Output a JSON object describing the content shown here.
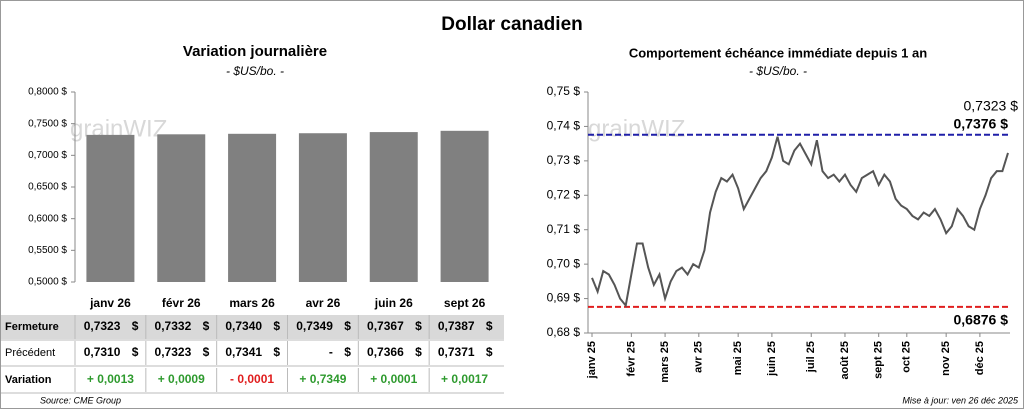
{
  "title": "Dollar canadien",
  "watermark": "grainWIZ",
  "source": "Source: CME Group",
  "updated": "Mise à jour: ven 26 déc 2025",
  "chart_data": [
    {
      "type": "bar",
      "title": "Variation  journalière",
      "subtitle": "- $US/bo. -",
      "color": "#808080",
      "categories": [
        "janv 26",
        "févr 26",
        "mars 26",
        "avr 26",
        "juin 26",
        "sept 26"
      ],
      "values": [
        0.7323,
        0.7332,
        0.734,
        0.7349,
        0.7367,
        0.7387
      ],
      "ylim": [
        0.5,
        0.8
      ],
      "yticks": [
        {
          "value": 0.5,
          "label": "0,5000 $"
        },
        {
          "value": 0.55,
          "label": "0,5500 $"
        },
        {
          "value": 0.6,
          "label": "0,6000 $"
        },
        {
          "value": 0.65,
          "label": "0,6500 $"
        },
        {
          "value": 0.7,
          "label": "0,7000 $"
        },
        {
          "value": 0.75,
          "label": "0,7500 $"
        },
        {
          "value": 0.8,
          "label": "0,8000 $"
        }
      ]
    },
    {
      "type": "line",
      "title": "Comportement échéance immédiate depuis 1 an",
      "subtitle": "- $US/bo. -",
      "color": "#555555",
      "categories": [
        "janv 25",
        null,
        null,
        null,
        null,
        null,
        null,
        "févr 25",
        null,
        null,
        null,
        null,
        null,
        "mars 25",
        null,
        null,
        null,
        null,
        null,
        "avr 25",
        null,
        null,
        null,
        null,
        null,
        null,
        "mai 25",
        null,
        null,
        null,
        null,
        null,
        "juin 25",
        null,
        null,
        null,
        null,
        null,
        null,
        "juil 25",
        null,
        null,
        null,
        null,
        null,
        "août 25",
        null,
        null,
        null,
        null,
        null,
        "sept 25",
        null,
        null,
        null,
        null,
        "oct 25",
        null,
        null,
        null,
        null,
        null,
        null,
        "nov 25",
        null,
        null,
        null,
        null,
        null,
        "déc 25",
        null,
        null,
        null,
        null,
        null
      ],
      "values": [
        0.696,
        0.692,
        0.698,
        0.697,
        0.694,
        0.69,
        0.688,
        0.697,
        0.706,
        0.706,
        0.699,
        0.694,
        0.697,
        0.69,
        0.695,
        0.698,
        0.699,
        0.697,
        0.7,
        0.699,
        0.704,
        0.715,
        0.721,
        0.725,
        0.724,
        0.726,
        0.722,
        0.716,
        0.719,
        0.722,
        0.725,
        0.727,
        0.731,
        0.737,
        0.73,
        0.729,
        0.733,
        0.735,
        0.732,
        0.729,
        0.736,
        0.727,
        0.725,
        0.726,
        0.724,
        0.726,
        0.723,
        0.721,
        0.725,
        0.726,
        0.727,
        0.723,
        0.726,
        0.724,
        0.719,
        0.717,
        0.716,
        0.714,
        0.713,
        0.715,
        0.714,
        0.716,
        0.713,
        0.709,
        0.711,
        0.716,
        0.714,
        0.711,
        0.71,
        0.716,
        0.72,
        0.725,
        0.727,
        0.727,
        0.7323
      ],
      "last_value_label": "0,7323 $",
      "reference_lines": [
        {
          "value": 0.7376,
          "label": "0,7376 $",
          "color": "#1f1fa8"
        },
        {
          "value": 0.6876,
          "label": "0,6876 $",
          "color": "#e01e1e"
        }
      ],
      "ylim": [
        0.68,
        0.75
      ],
      "yticks": [
        {
          "value": 0.68,
          "label": "0,68 $"
        },
        {
          "value": 0.69,
          "label": "0,69 $"
        },
        {
          "value": 0.7,
          "label": "0,70 $"
        },
        {
          "value": 0.71,
          "label": "0,71 $"
        },
        {
          "value": 0.72,
          "label": "0,72 $"
        },
        {
          "value": 0.73,
          "label": "0,73 $"
        },
        {
          "value": 0.74,
          "label": "0,74 $"
        },
        {
          "value": 0.75,
          "label": "0,75 $"
        }
      ]
    }
  ],
  "table": {
    "rows": [
      {
        "label": "Fermeture",
        "cells": [
          {
            "text": "0,7323",
            "unit": "$"
          },
          {
            "text": "0,7332",
            "unit": "$"
          },
          {
            "text": "0,7340",
            "unit": "$"
          },
          {
            "text": "0,7349",
            "unit": "$"
          },
          {
            "text": "0,7367",
            "unit": "$"
          },
          {
            "text": "0,7387",
            "unit": "$"
          }
        ]
      },
      {
        "label": "Précédent",
        "cells": [
          {
            "text": "0,7310",
            "unit": "$"
          },
          {
            "text": "0,7323",
            "unit": "$"
          },
          {
            "text": "0,7341",
            "unit": "$"
          },
          {
            "text": "-",
            "unit": "$"
          },
          {
            "text": "0,7366",
            "unit": "$"
          },
          {
            "text": "0,7371",
            "unit": "$"
          }
        ]
      },
      {
        "label": "Variation",
        "cells": [
          {
            "text": "+ 0,0013",
            "color": "#2e9a2e"
          },
          {
            "text": "+ 0,0009",
            "color": "#2e9a2e"
          },
          {
            "text": "- 0,0001",
            "color": "#e01e1e"
          },
          {
            "text": "+ 0,7349",
            "color": "#2e9a2e"
          },
          {
            "text": "+ 0,0001",
            "color": "#2e9a2e"
          },
          {
            "text": "+ 0,0017",
            "color": "#2e9a2e"
          }
        ]
      }
    ]
  }
}
